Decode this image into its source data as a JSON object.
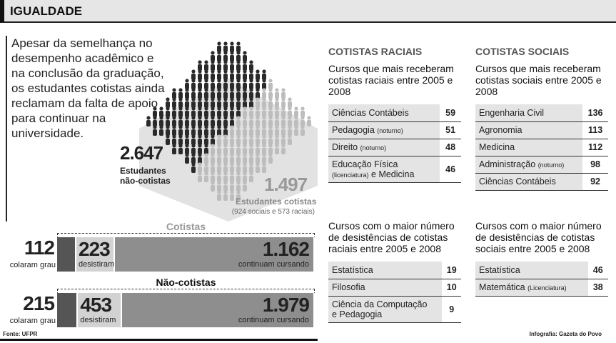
{
  "header": {
    "title": "IGUALDADE"
  },
  "intro": "Apesar da semelhança no desempenho acadêmico e na conclusão da graduação, os estudantes cotistas ainda reclamam da falta de apoio para continuar na universidade.",
  "figure": {
    "non_quota": {
      "value": "2.647",
      "label1": "Estudantes",
      "label2": "não-cotistas"
    },
    "quota": {
      "value": "1.497",
      "label": "Estudantes cotistas",
      "detail": "(924 sociais e 573 raciais)"
    },
    "colors": {
      "dark": "#2a2a2a",
      "light": "#bdbdbd",
      "bg": "#e2e2e2"
    }
  },
  "chart_data": {
    "type": "bar",
    "stacked": true,
    "orientation": "horizontal",
    "categories": [
      "Cotistas",
      "Não-cotistas"
    ],
    "series": [
      {
        "name": "colaram grau",
        "values": [
          112,
          215
        ],
        "display": [
          "112",
          "215"
        ],
        "color": "#555555"
      },
      {
        "name": "desistiram",
        "values": [
          223,
          453
        ],
        "display": [
          "223",
          "453"
        ],
        "color": "#d2d2d2"
      },
      {
        "name": "continuam cursando",
        "values": [
          1162,
          1979
        ],
        "display": [
          "1.162",
          "1.979"
        ],
        "color": "#8e8e8e"
      }
    ]
  },
  "racial": {
    "heading": "COTISTAS RACIAIS",
    "top": {
      "title": "Cursos que mais receberam cotistas raciais entre 2005 e 2008",
      "rows": [
        {
          "name": "Ciências Contábeis",
          "note": "",
          "value": "59"
        },
        {
          "name": "Pedagogia",
          "note": "(noturno)",
          "value": "51"
        },
        {
          "name": "Direito",
          "note": "(noturno)",
          "value": "48"
        },
        {
          "name": "Educação Física",
          "note": "(licenciatura)",
          "name2": "e Medicina",
          "value": "46"
        }
      ]
    },
    "dropout": {
      "title": "Cursos com o maior número de desistências de cotistas raciais entre 2005 e 2008",
      "rows": [
        {
          "name": "Estatística",
          "value": "19"
        },
        {
          "name": "Filosofia",
          "value": "10"
        },
        {
          "name": "Ciência da Computação",
          "name2": "e Pedagogia",
          "value": "9"
        }
      ]
    }
  },
  "social": {
    "heading": "COTISTAS SOCIAIS",
    "top": {
      "title": "Cursos que mais receberam cotistas sociais entre 2005 e 2008",
      "rows": [
        {
          "name": "Engenharia Civil",
          "value": "136"
        },
        {
          "name": "Agronomia",
          "value": "113"
        },
        {
          "name": "Medicina",
          "value": "112"
        },
        {
          "name": "Administração",
          "note": "(noturno)",
          "value": "98"
        },
        {
          "name": "Ciências Contábeis",
          "value": "92"
        }
      ]
    },
    "dropout": {
      "title": "Cursos com o maior número de desistências de cotistas sociais entre 2005 e 2008",
      "rows": [
        {
          "name": "Estatística",
          "value": "46"
        },
        {
          "name": "Matemática",
          "note": "(Licenciatura)",
          "value": "38"
        }
      ]
    }
  },
  "footer": {
    "source": "Fonte: UFPR",
    "credit": "Infografia: Gazeta do Povo"
  }
}
